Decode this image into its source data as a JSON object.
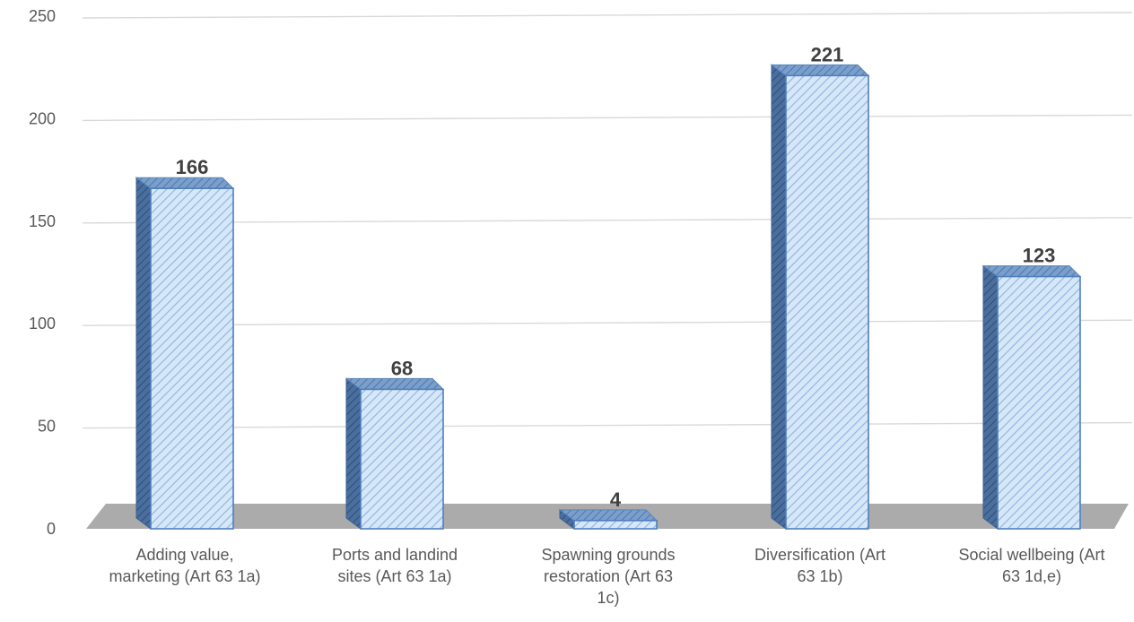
{
  "chart_data": {
    "type": "bar",
    "categories": [
      [
        "Adding value,",
        "marketing (Art 63 1a)"
      ],
      [
        "Ports and landind",
        "sites (Art 63 1a)"
      ],
      [
        "Spawning grounds",
        "restoration (Art  63",
        "1c)"
      ],
      [
        "Diversification (Art",
        "63 1b)"
      ],
      [
        "Social wellbeing (Art",
        "63 1d,e)"
      ]
    ],
    "values": [
      166,
      68,
      4,
      221,
      123
    ],
    "data_labels": [
      "166",
      "68",
      "4",
      "221",
      "123"
    ],
    "yticks": [
      "0",
      "50",
      "100",
      "150",
      "200",
      "250"
    ],
    "ylim": [
      0,
      250
    ],
    "grid": true,
    "style": "3d-column-hatched",
    "colors": {
      "bar_fill": "#cfe3f7",
      "bar_hatch": "#7fa8d8",
      "bar_edge": "#4f7fbf",
      "bar_side": "#3d5f8f",
      "bar_top": "#5b85b8",
      "floor": "#a6a6a6",
      "grid": "#d9d9d9"
    }
  }
}
